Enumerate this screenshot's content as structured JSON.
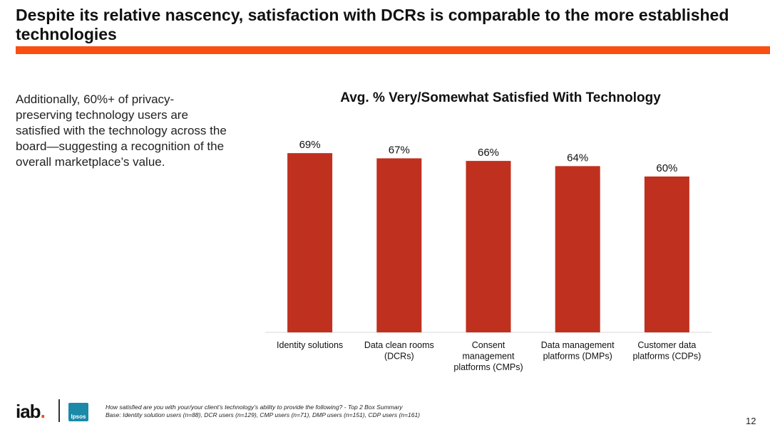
{
  "slide": {
    "title": "Despite its relative nascency, satisfaction with DCRs is comparable to the more established technologies",
    "body_text": "Additionally, 60%+ of privacy-preserving technology users are satisfied with the technology across the board—suggesting a recognition of the overall marketplace’s value.",
    "accent_color": "#fa4f12",
    "footnote_line1": "How satisfied are you with your/your client’s technology’s ability to provide the following? - Top 2 Box Summary",
    "footnote_line2": "Base: Identity solution users (n=88), DCR users (n=129), CMP users (n=71), DMP users (n=151), CDP users (n=161)",
    "page_number": "12",
    "logos": {
      "iab_main": "iab",
      "iab_dot": ".",
      "ipsos": "Ipsos"
    }
  },
  "chart_data": {
    "type": "bar",
    "title": "Avg. % Very/Somewhat Satisfied With Technology",
    "categories": [
      "Identity solutions",
      "Data clean rooms (DCRs)",
      "Consent management platforms (CMPs)",
      "Data management platforms (DMPs)",
      "Customer data platforms (CDPs)"
    ],
    "values": [
      69,
      67,
      66,
      64,
      60
    ],
    "data_labels": [
      "69%",
      "67%",
      "66%",
      "64%",
      "60%"
    ],
    "bar_color": "#c0301f",
    "ylim": [
      0,
      79
    ],
    "grid": false,
    "legend": "none"
  }
}
